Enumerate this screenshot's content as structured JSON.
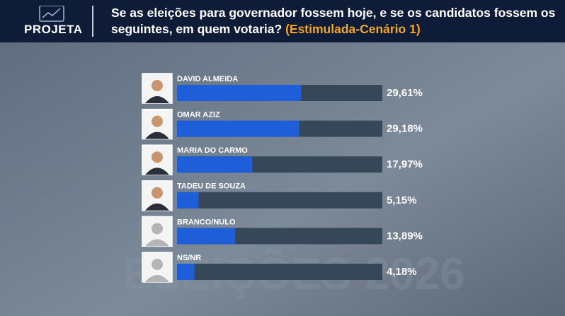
{
  "brand": "PROJETA",
  "chart_data": {
    "type": "bar",
    "orientation": "horizontal",
    "title": "Se as eleições para governador fossem hoje, e se os candidatos fossem os seguintes, em quem votaria?",
    "subtitle": "(Estimulada-Cenário 1)",
    "watermark": "ELEIÇÕES 2026",
    "categories": [
      "DAVID ALMEIDA",
      "OMAR AZIZ",
      "MARIA DO CARMO",
      "TADEU DE SOUZA",
      "BRANCO/NULO",
      "NS/NR"
    ],
    "values": [
      29.61,
      29.18,
      17.97,
      5.15,
      13.89,
      4.18
    ],
    "value_labels": [
      "29,61%",
      "29,18%",
      "17,97%",
      "5,15%",
      "13,89%",
      "4,18%"
    ],
    "xlim": [
      0,
      49
    ],
    "color": "#1e5ed8",
    "track_color": "#36475a"
  }
}
